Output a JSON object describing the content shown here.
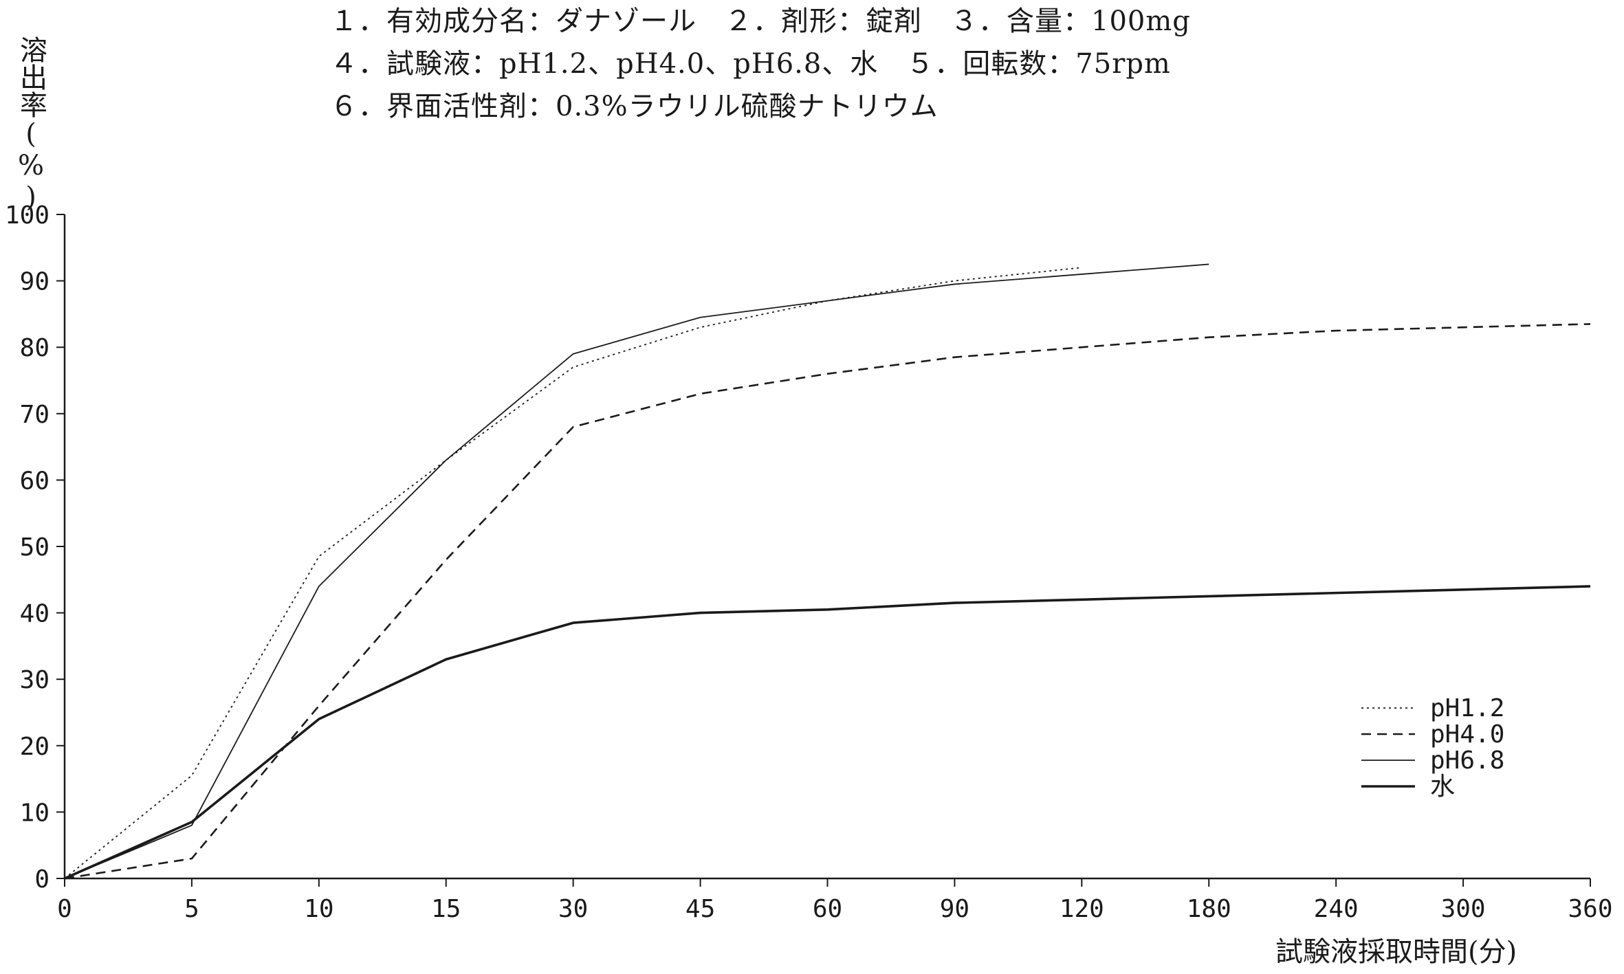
{
  "header": {
    "line1": "１．有効成分名：ダナゾール　２．剤形：錠剤　３．含量：100mg",
    "line2": "４．試験液：pH1.2、pH4.0、pH6.8、水　５．回転数：75rpm",
    "line3": "６．界面活性剤：0.3%ラウリル硫酸ナトリウム"
  },
  "chart_data": {
    "type": "line",
    "title": "",
    "xlabel": "試験液採取時間(分)",
    "ylabel": "溶出率(%)",
    "categories": [
      "0",
      "5",
      "10",
      "15",
      "30",
      "45",
      "60",
      "90",
      "120",
      "180",
      "240",
      "300",
      "360"
    ],
    "ylim": [
      0,
      100
    ],
    "yticks": [
      "0",
      "10",
      "20",
      "30",
      "40",
      "50",
      "60",
      "70",
      "80",
      "90",
      "100"
    ],
    "grid": false,
    "legend_position": "bottom-right",
    "series": [
      {
        "name": "pH1.2",
        "style": "dotted",
        "color": "#1a1a1a",
        "x": [
          "0",
          "5",
          "10",
          "15",
          "30",
          "45",
          "60",
          "90",
          "120"
        ],
        "values": [
          0,
          15.5,
          48.5,
          63,
          77,
          83,
          87,
          90,
          92
        ]
      },
      {
        "name": "pH4.0",
        "style": "dashed",
        "color": "#1a1a1a",
        "x": [
          "0",
          "5",
          "10",
          "15",
          "30",
          "45",
          "60",
          "90",
          "120",
          "180",
          "240",
          "300",
          "360"
        ],
        "values": [
          0,
          3,
          26,
          48,
          68,
          73,
          76,
          78.5,
          80,
          81.5,
          82.5,
          83,
          83.5
        ]
      },
      {
        "name": "pH6.8",
        "style": "thin",
        "color": "#1a1a1a",
        "x": [
          "0",
          "5",
          "10",
          "15",
          "30",
          "45",
          "60",
          "90",
          "120",
          "180"
        ],
        "values": [
          0,
          8,
          44,
          63,
          79,
          84.5,
          87,
          89.5,
          91,
          92.5
        ]
      },
      {
        "name": "水",
        "style": "thick",
        "color": "#1a1a1a",
        "x": [
          "0",
          "5",
          "10",
          "15",
          "30",
          "45",
          "60",
          "90",
          "120",
          "180",
          "240",
          "300",
          "360"
        ],
        "values": [
          0,
          8.5,
          24,
          33,
          38.5,
          40,
          40.5,
          41.5,
          42,
          42.5,
          43,
          43.5,
          44
        ]
      }
    ]
  }
}
